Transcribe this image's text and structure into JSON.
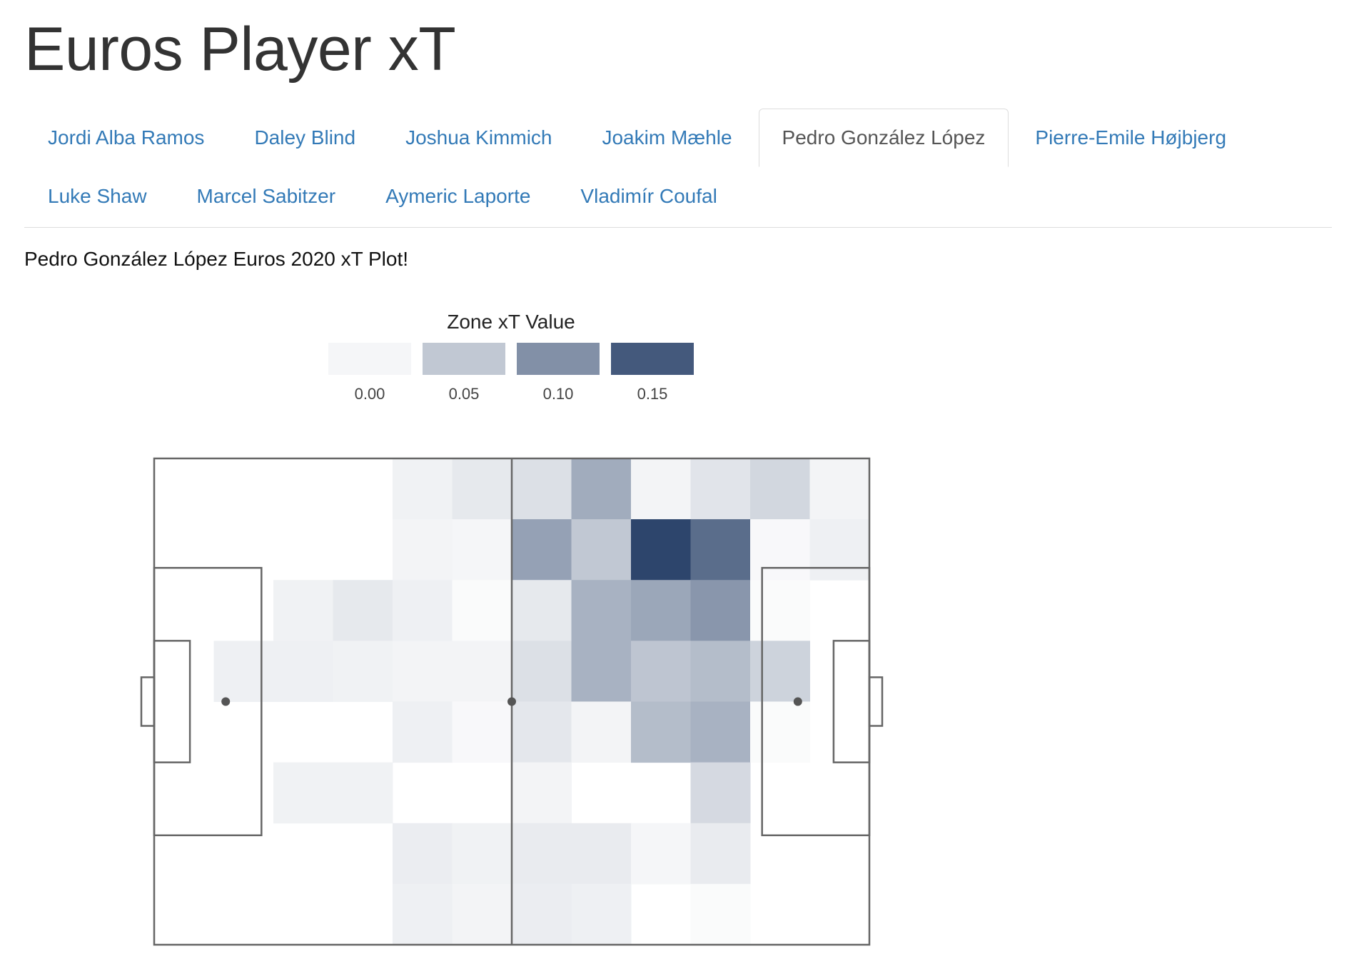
{
  "app": {
    "title": "Euros Player xT"
  },
  "tabs": {
    "row1": [
      {
        "label": "Jordi Alba Ramos",
        "active": false
      },
      {
        "label": "Daley Blind",
        "active": false
      },
      {
        "label": "Joshua Kimmich",
        "active": false
      },
      {
        "label": "Joakim Mæhle",
        "active": false
      },
      {
        "label": "Pedro González López",
        "active": true
      },
      {
        "label": "Pierre-Emile Højbjerg",
        "active": false
      }
    ],
    "row2": [
      {
        "label": "Luke Shaw",
        "active": false
      },
      {
        "label": "Marcel Sabitzer",
        "active": false
      },
      {
        "label": "Aymeric Laporte",
        "active": false
      },
      {
        "label": "Vladimír Coufal",
        "active": false
      }
    ]
  },
  "plot": {
    "caption": "Pedro González López Euros 2020 xT Plot!"
  },
  "chart_data": {
    "type": "heatmap",
    "title": "",
    "legend": {
      "title": "Zone xT Value",
      "labels": [
        "0.00",
        "0.05",
        "0.10",
        "0.15"
      ],
      "values": [
        0.0,
        0.05,
        0.1,
        0.15
      ],
      "placement": "top",
      "color_low": "#ffffff",
      "color_high": "#2b436a"
    },
    "grid": {
      "columns": 12,
      "rows": 8
    },
    "zones": [
      [
        0.0,
        0.0,
        0.0,
        0.0,
        0.012,
        0.02,
        0.028,
        0.075,
        0.01,
        0.024,
        0.036,
        0.01
      ],
      [
        0.0,
        0.0,
        0.0,
        0.0,
        0.01,
        0.008,
        0.085,
        0.05,
        0.168,
        0.132,
        0.006,
        0.014
      ],
      [
        0.0,
        0.0,
        0.012,
        0.02,
        0.014,
        0.004,
        0.02,
        0.07,
        0.08,
        0.095,
        0.004,
        0.0
      ],
      [
        0.0,
        0.014,
        0.014,
        0.012,
        0.01,
        0.01,
        0.028,
        0.07,
        0.052,
        0.06,
        0.04,
        0.0
      ],
      [
        0.0,
        0.0,
        0.0,
        0.0,
        0.014,
        0.006,
        0.022,
        0.01,
        0.06,
        0.07,
        0.004,
        0.0
      ],
      [
        0.0,
        0.0,
        0.012,
        0.012,
        0.0,
        0.0,
        0.01,
        0.0,
        0.0,
        0.034,
        0.0,
        0.0
      ],
      [
        0.0,
        0.0,
        0.0,
        0.0,
        0.016,
        0.012,
        0.018,
        0.018,
        0.008,
        0.018,
        0.0,
        0.0
      ],
      [
        0.0,
        0.0,
        0.0,
        0.0,
        0.014,
        0.01,
        0.016,
        0.014,
        0.0,
        0.004,
        0.0,
        0.0
      ]
    ]
  }
}
